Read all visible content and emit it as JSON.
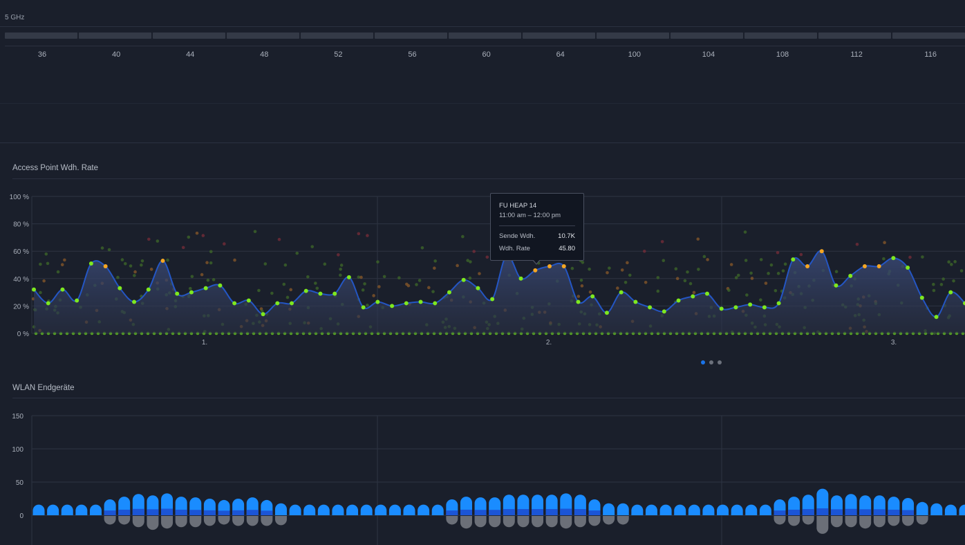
{
  "band": {
    "label": "5 GHz"
  },
  "channels": [
    "36",
    "40",
    "44",
    "48",
    "52",
    "56",
    "60",
    "64",
    "100",
    "104",
    "108",
    "112",
    "116"
  ],
  "rate_chart": {
    "title": "Access Point Wdh. Rate",
    "y_ticks": [
      "100 %",
      "80 %",
      "60 %",
      "40 %",
      "20 %",
      "0 %"
    ],
    "x_ticks": [
      "1.",
      "2.",
      "3."
    ]
  },
  "tooltip": {
    "name": "FU HEAP 14",
    "time": "11:00 am – 12:00 pm",
    "rows": [
      {
        "label": "Sende Wdh.",
        "value": "10.7K"
      },
      {
        "label": "Wdh. Rate",
        "value": "45.80"
      }
    ]
  },
  "clients_chart": {
    "title": "WLAN Endgeräte",
    "y_ticks": [
      "150",
      "100",
      "50",
      "0"
    ]
  },
  "pager": {
    "count": 3,
    "active": 0
  },
  "colors": {
    "line": "#2456c4",
    "point_green": "#7ee81f",
    "point_orange": "#f5a623",
    "bar_blue": "#1a8cff",
    "bar_dark_blue": "#1b55d6",
    "bar_gray": "#6b6f78"
  },
  "chart_data": [
    {
      "type": "line",
      "title": "Access Point Wdh. Rate",
      "ylim": [
        0,
        100
      ],
      "x_ticks": [
        "1.",
        "2.",
        "3."
      ],
      "series": [
        {
          "values": [
            32,
            22,
            32,
            24,
            51,
            49,
            33,
            23,
            32,
            53,
            29,
            30,
            33,
            35,
            22,
            24,
            14,
            22,
            22,
            31,
            29,
            29,
            41,
            19,
            23,
            20,
            22,
            23,
            22,
            30,
            39,
            33,
            25,
            57,
            40,
            46,
            49,
            49,
            23,
            27,
            15,
            30,
            23,
            19,
            16,
            24,
            27,
            29,
            18,
            19,
            21,
            19,
            22,
            54,
            49,
            60,
            35,
            42,
            49,
            49,
            55,
            48,
            26,
            12,
            30,
            22
          ]
        }
      ]
    },
    {
      "type": "bar",
      "title": "WLAN Endgeräte",
      "ylim": [
        0,
        150
      ],
      "series": [
        {
          "values": [
            16,
            16,
            16,
            16,
            16,
            24,
            28,
            32,
            30,
            33,
            28,
            27,
            25,
            23,
            25,
            27,
            23,
            18,
            16,
            16,
            16,
            16,
            16,
            16,
            16,
            16,
            16,
            16,
            16,
            24,
            28,
            27,
            27,
            31,
            31,
            31,
            31,
            33,
            31,
            24,
            18,
            18,
            16,
            16,
            16,
            16,
            16,
            16,
            16,
            16,
            16,
            16,
            24,
            28,
            31,
            40,
            30,
            32,
            30,
            30,
            28,
            26,
            20,
            18,
            16,
            16
          ]
        },
        {
          "values": [
            -10,
            -10,
            -10,
            -10,
            -10,
            -14,
            -14,
            -18,
            -22,
            -20,
            -18,
            -18,
            -16,
            -14,
            -16,
            -16,
            -16,
            -15,
            -10,
            -10,
            -10,
            -10,
            -10,
            -10,
            -10,
            -10,
            -10,
            -10,
            -10,
            -14,
            -20,
            -18,
            -18,
            -18,
            -18,
            -18,
            -18,
            -20,
            -18,
            -16,
            -14,
            -14,
            -10,
            -10,
            -10,
            -10,
            -10,
            -10,
            -10,
            -10,
            -10,
            -10,
            -14,
            -16,
            -14,
            -28,
            -18,
            -18,
            -20,
            -18,
            -16,
            -16,
            -14,
            -12,
            -10,
            -10
          ]
        }
      ]
    }
  ]
}
